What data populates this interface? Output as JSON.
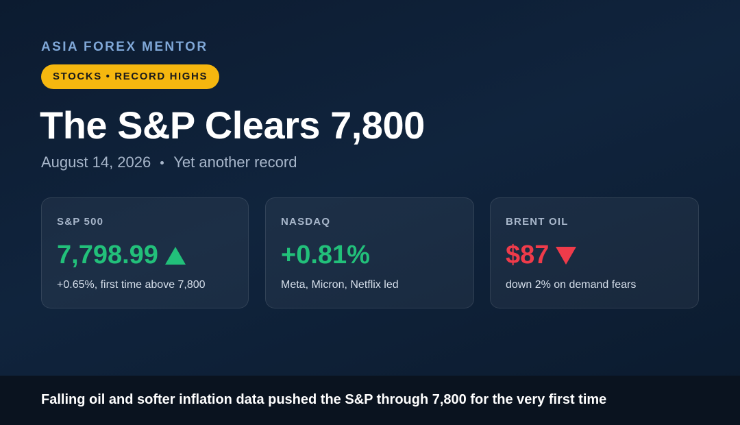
{
  "brand": "ASIA FOREX MENTOR",
  "tag": "STOCKS • RECORD HIGHS",
  "title": "The S&P Clears 7,800",
  "date": "August 14, 2026",
  "subtitle": "Yet another record",
  "cards": [
    {
      "label": "S&P 500",
      "value": "7,798.99",
      "note": "+0.65%, first time above 7,800"
    },
    {
      "label": "NASDAQ",
      "value": "+0.81%",
      "note": "Meta, Micron, Netflix led"
    },
    {
      "label": "BRENT OIL",
      "value": "$87",
      "note": "down 2% on demand fears"
    }
  ],
  "footer": "Falling oil and softer inflation data pushed the S&P through 7,800 for the very first time"
}
